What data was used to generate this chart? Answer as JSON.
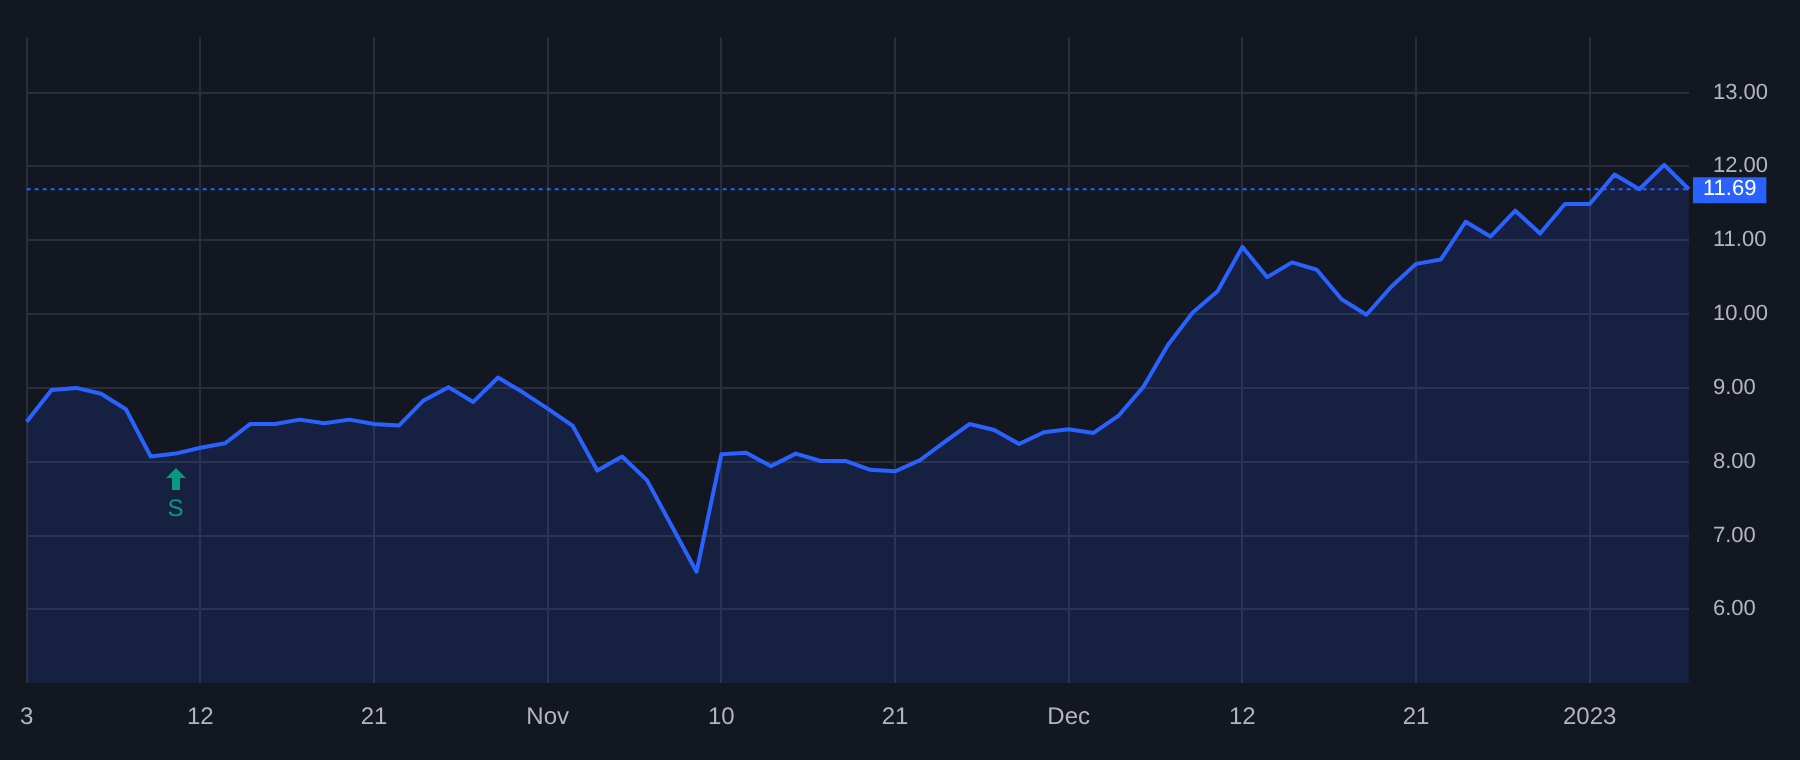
{
  "chart_data": {
    "type": "area",
    "categories": [
      "3",
      null,
      null,
      null,
      null,
      null,
      null,
      "12",
      null,
      null,
      null,
      null,
      null,
      null,
      "21",
      null,
      null,
      null,
      null,
      null,
      null,
      "Nov",
      null,
      null,
      null,
      null,
      null,
      null,
      "10",
      null,
      null,
      null,
      null,
      null,
      null,
      "21",
      null,
      null,
      null,
      null,
      null,
      null,
      "Dec",
      null,
      null,
      null,
      null,
      null,
      null,
      "12",
      null,
      null,
      null,
      null,
      null,
      null,
      "21",
      null,
      null,
      null,
      null,
      null,
      null,
      "2023",
      null,
      null,
      null,
      null
    ],
    "series": [
      {
        "color": "#2962ff",
        "values": [
          8.54,
          8.97,
          9.0,
          8.92,
          8.71,
          8.07,
          8.11,
          8.19,
          8.25,
          8.51,
          8.51,
          8.57,
          8.52,
          8.57,
          8.51,
          8.49,
          8.83,
          9.01,
          8.81,
          9.14,
          8.94,
          8.72,
          8.49,
          7.88,
          8.07,
          7.75,
          7.13,
          6.51,
          8.1,
          8.12,
          7.94,
          8.11,
          8.01,
          8.01,
          7.89,
          7.87,
          8.02,
          8.27,
          8.51,
          8.43,
          8.24,
          8.4,
          8.44,
          8.39,
          8.62,
          9.01,
          9.58,
          10.02,
          10.31,
          10.91,
          10.5,
          10.7,
          10.6,
          10.2,
          9.99,
          10.37,
          10.68,
          10.74,
          11.25,
          11.05,
          11.4,
          11.09,
          11.49,
          11.49,
          11.89,
          11.69,
          12.02,
          11.69
        ]
      }
    ],
    "ylim": [
      5,
      13.75
    ],
    "yticks": [
      {
        "value": 6,
        "label": "6.00"
      },
      {
        "value": 7,
        "label": "7.00"
      },
      {
        "value": 8,
        "label": "8.00"
      },
      {
        "value": 9,
        "label": "9.00"
      },
      {
        "value": 10,
        "label": "10.00"
      },
      {
        "value": 11,
        "label": "11.00"
      },
      {
        "value": 12,
        "label": "12.00"
      },
      {
        "value": 13,
        "label": "13.00"
      }
    ],
    "ref_lines": [
      {
        "axis": "y",
        "value": 11.69,
        "label": "11.69",
        "color": "#2962ff",
        "line_style": "dotted"
      }
    ],
    "annotations": [
      {
        "text": "S",
        "y": 8.11
      }
    ],
    "grid": true,
    "legend": false,
    "marker": "none",
    "line_style": "solid"
  }
}
